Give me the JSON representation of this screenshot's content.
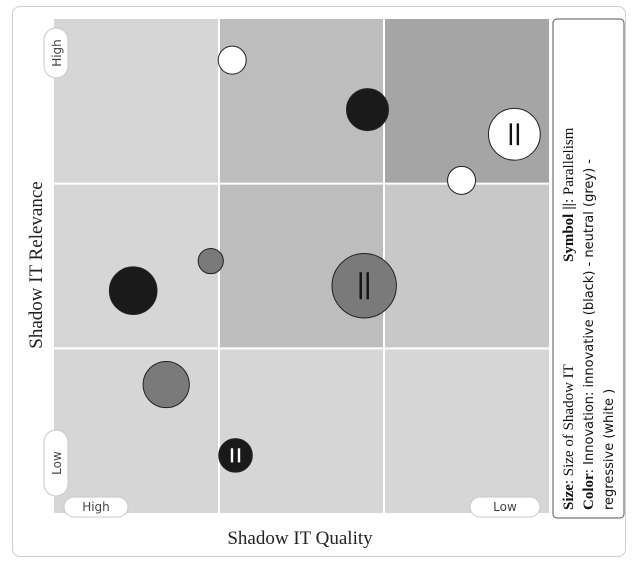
{
  "chart_data": {
    "type": "scatter",
    "title": "",
    "xlabel": "Shadow IT Quality",
    "ylabel": "Shadow IT Relevance",
    "x_tick_labels": {
      "start": "High",
      "end": "Low"
    },
    "y_tick_labels": {
      "end": "High",
      "start": "Low"
    },
    "xlim": [
      0,
      3
    ],
    "ylim": [
      0,
      3
    ],
    "x_reversed": true,
    "grid": true,
    "quadrant_shades": [
      [
        "#d6d6d6",
        "#bdbdbd",
        "#a5a5a5"
      ],
      [
        "#d6d6d6",
        "#bdbdbd",
        "#c8c8c8"
      ],
      [
        "#d6d6d6",
        "#d6d6d6",
        "#d6d6d6"
      ]
    ],
    "color_map": {
      "innovative": "#1a1a1a",
      "neutral": "#7a7a7a",
      "regressive": "#ffffff"
    },
    "points": [
      {
        "x": 1.08,
        "y": 2.75,
        "size": 1.0,
        "color": "regressive",
        "parallel": false
      },
      {
        "x": 1.9,
        "y": 2.45,
        "size": 1.5,
        "color": "innovative",
        "parallel": false
      },
      {
        "x": 2.79,
        "y": 2.3,
        "size": 1.85,
        "color": "regressive",
        "parallel": true
      },
      {
        "x": 2.47,
        "y": 2.02,
        "size": 1.0,
        "color": "regressive",
        "parallel": false
      },
      {
        "x": 0.95,
        "y": 1.53,
        "size": 0.9,
        "color": "neutral",
        "parallel": false
      },
      {
        "x": 0.48,
        "y": 1.35,
        "size": 1.7,
        "color": "innovative",
        "parallel": false
      },
      {
        "x": 1.88,
        "y": 1.38,
        "size": 2.3,
        "color": "neutral",
        "parallel": true
      },
      {
        "x": 0.68,
        "y": 0.78,
        "size": 1.65,
        "color": "neutral",
        "parallel": false
      },
      {
        "x": 1.1,
        "y": 0.35,
        "size": 1.2,
        "color": "innovative",
        "parallel": true
      }
    ]
  },
  "legend": {
    "size_label": "Size",
    "size_text": ": Size of Shadow IT",
    "symbol_label": "Symbol",
    "symbol_glyph": "||",
    "symbol_text": ": Parallelism",
    "color_label": "Color",
    "color_text": ":  Innovation:  innovative  (black)  -  neutral  (grey)  -",
    "color_text_2": "regressive (white )"
  }
}
